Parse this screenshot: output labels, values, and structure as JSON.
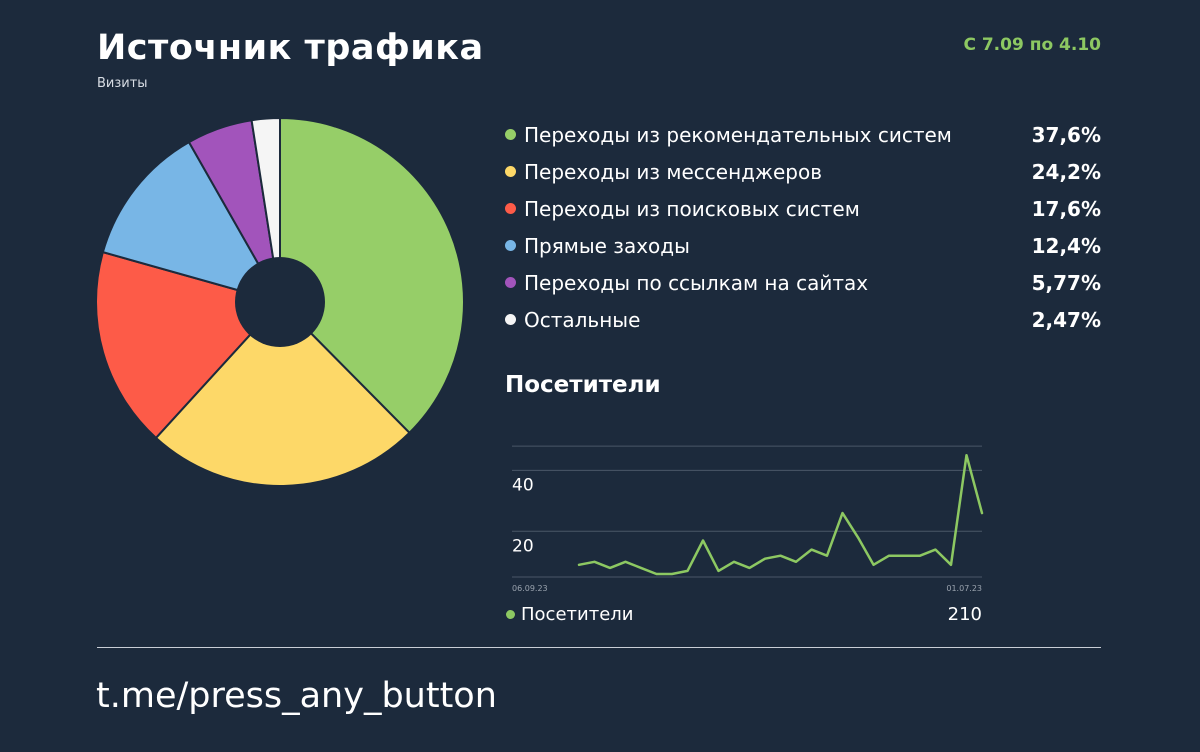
{
  "header": {
    "title": "Источник трафика",
    "subtitle": "Визиты",
    "date_range": "С 7.09 по 4.10",
    "date_range_color": "#8dc862"
  },
  "legend": {
    "items": [
      {
        "label": "Переходы из рекомендательных систем",
        "value": "37,6%",
        "color": "#96ce68"
      },
      {
        "label": "Переходы из мессенджеров",
        "value": "24,2%",
        "color": "#fdd868"
      },
      {
        "label": "Переходы из поисковых систем",
        "value": "17,6%",
        "color": "#fd5b48"
      },
      {
        "label": "Прямые заходы",
        "value": "12,4%",
        "color": "#78b6e6"
      },
      {
        "label": "Переходы по ссылкам на сайтах",
        "value": "5,77%",
        "color": "#a254bb"
      },
      {
        "label": "Остальные",
        "value": "2,47%",
        "color": "#f5f5f5"
      }
    ]
  },
  "visitors": {
    "title": "Посетители",
    "legend_label": "Посетители",
    "total": "210",
    "color": "#8dc862"
  },
  "footer": {
    "link": "t.me/press_any_button"
  },
  "chart_data": [
    {
      "type": "pie",
      "title": "Источник трафика",
      "subtitle": "Визиты",
      "donut": true,
      "categories": [
        "Переходы из рекомендательных систем",
        "Переходы из мессенджеров",
        "Переходы из поисковых систем",
        "Прямые заходы",
        "Переходы по ссылкам на сайтах",
        "Остальные"
      ],
      "values": [
        37.6,
        24.2,
        17.6,
        12.4,
        5.77,
        2.47
      ],
      "colors": [
        "#96ce68",
        "#fdd868",
        "#fd5b48",
        "#78b6e6",
        "#a254bb",
        "#f5f5f5"
      ]
    },
    {
      "type": "line",
      "title": "Посетители",
      "x_tick_labels": [
        "06.09.23",
        "01.07.23"
      ],
      "y_ticks": [
        20,
        40
      ],
      "ylim": [
        5,
        50
      ],
      "grid": true,
      "series": [
        {
          "name": "Посетители",
          "color": "#8dc862",
          "values": [
            9,
            10,
            8,
            10,
            8,
            6,
            6,
            7,
            17,
            7,
            10,
            8,
            11,
            12,
            10,
            14,
            12,
            26,
            18,
            9,
            12,
            12,
            12,
            14,
            9,
            45,
            26
          ]
        }
      ]
    }
  ]
}
